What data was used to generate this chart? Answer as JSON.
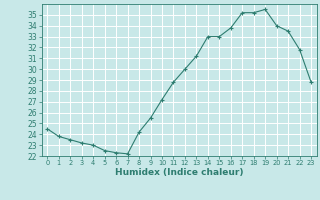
{
  "xlabel": "Humidex (Indice chaleur)",
  "ylabel": "",
  "x": [
    0,
    1,
    2,
    3,
    4,
    5,
    6,
    7,
    8,
    9,
    10,
    11,
    12,
    13,
    14,
    15,
    16,
    17,
    18,
    19,
    20,
    21,
    22,
    23
  ],
  "y": [
    24.5,
    23.8,
    23.5,
    23.2,
    23.0,
    22.5,
    22.3,
    22.2,
    24.2,
    25.5,
    27.2,
    28.8,
    30.0,
    31.2,
    33.0,
    33.0,
    33.8,
    35.2,
    35.2,
    35.5,
    34.0,
    33.5,
    31.8,
    28.8
  ],
  "line_color": "#2e7d70",
  "marker": "+",
  "bg_color": "#c8e8e8",
  "grid_color": "#ffffff",
  "tick_color": "#2e7d70",
  "label_color": "#2e7d70",
  "ylim": [
    22,
    36
  ],
  "yticks": [
    22,
    23,
    24,
    25,
    26,
    27,
    28,
    29,
    30,
    31,
    32,
    33,
    34,
    35
  ],
  "xlim": [
    -0.5,
    23.5
  ],
  "xticks": [
    0,
    1,
    2,
    3,
    4,
    5,
    6,
    7,
    8,
    9,
    10,
    11,
    12,
    13,
    14,
    15,
    16,
    17,
    18,
    19,
    20,
    21,
    22,
    23
  ],
  "xlabel_fontsize": 6.5,
  "xlabel_fontweight": "bold",
  "ytick_fontsize": 5.5,
  "xtick_fontsize": 4.8,
  "linewidth": 0.8,
  "markersize": 3,
  "markeredgewidth": 0.8
}
